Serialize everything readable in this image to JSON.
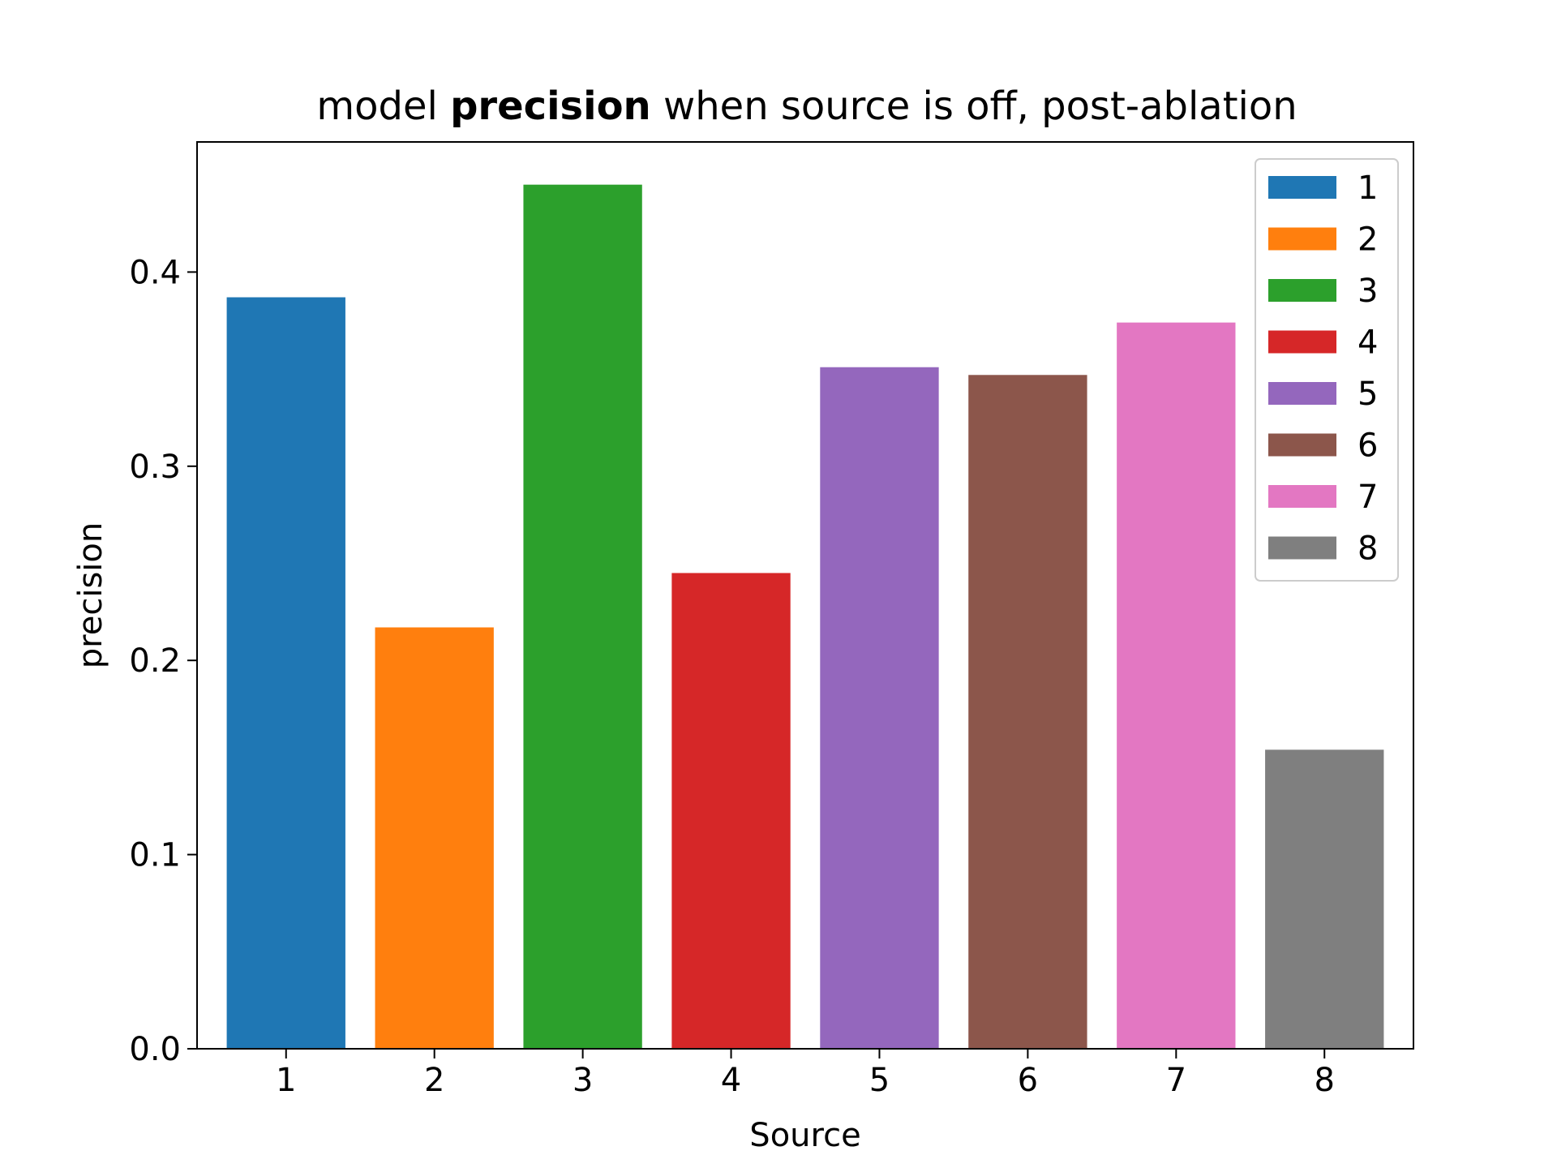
{
  "chart_data": {
    "type": "bar",
    "title": {
      "prefix": "model ",
      "bold": "precision",
      "suffix": " when source is off, post-ablation"
    },
    "xlabel": "Source",
    "ylabel": "precision",
    "categories": [
      "1",
      "2",
      "3",
      "4",
      "5",
      "6",
      "7",
      "8"
    ],
    "values": [
      0.387,
      0.217,
      0.445,
      0.245,
      0.351,
      0.347,
      0.374,
      0.154
    ],
    "colors": [
      "#1f77b4",
      "#ff7f0e",
      "#2ca02c",
      "#d62728",
      "#9467bd",
      "#8c564b",
      "#e377c2",
      "#7f7f7f"
    ],
    "ylim": [
      0,
      0.467
    ],
    "yticks": [
      0.0,
      0.1,
      0.2,
      0.3,
      0.4
    ],
    "ytick_labels": [
      "0.0",
      "0.1",
      "0.2",
      "0.3",
      "0.4"
    ],
    "legend": {
      "position": "top-right",
      "entries": [
        "1",
        "2",
        "3",
        "4",
        "5",
        "6",
        "7",
        "8"
      ]
    },
    "grid": false
  }
}
